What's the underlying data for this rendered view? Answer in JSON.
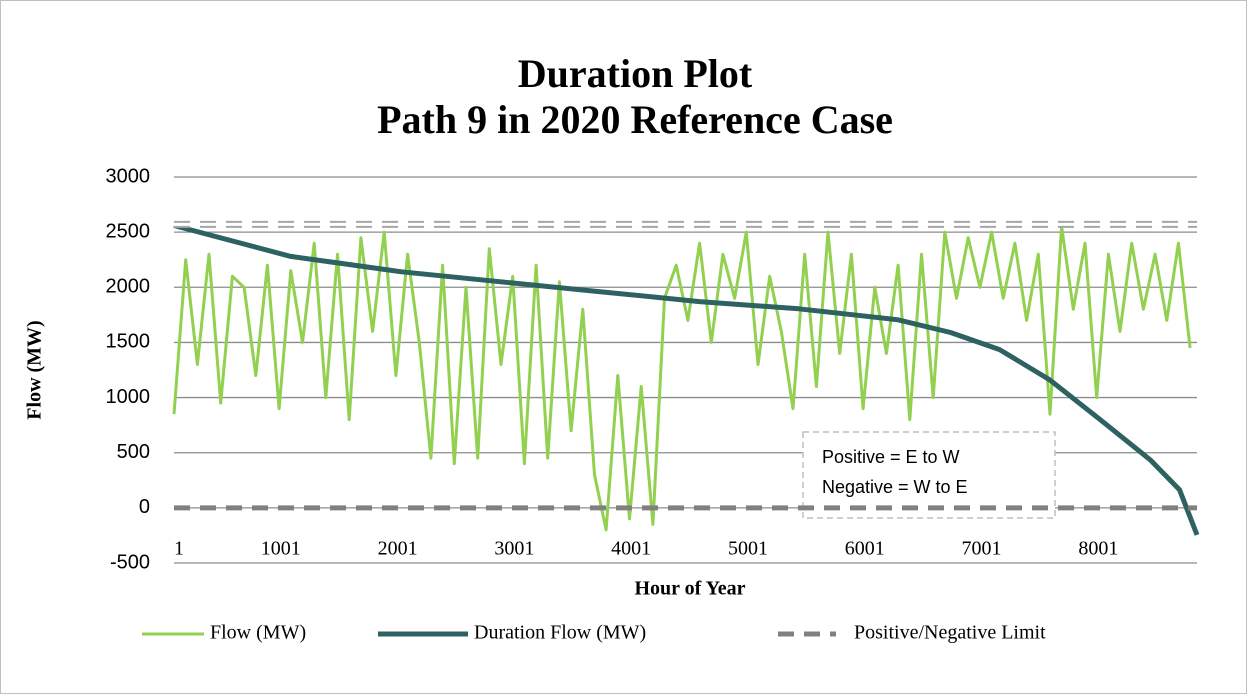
{
  "chart_data": {
    "type": "line",
    "title": "Duration Plot",
    "subtitle": "Path 9 in 2020 Reference Case",
    "x_label": "Hour of Year",
    "y_label": "Flow (MW)",
    "annotation": [
      "Positive = E to W",
      "Negative = W to E"
    ],
    "xlim": [
      1,
      8760
    ],
    "xticks": [
      1,
      1001,
      2001,
      3001,
      4001,
      5001,
      6001,
      7001,
      8001
    ],
    "ylim": [
      -500,
      3000
    ],
    "yticks": [
      -500,
      0,
      500,
      1000,
      1500,
      2000,
      2500,
      3000
    ],
    "grid": true,
    "legend": "bottom",
    "series": [
      {
        "name": "Flow (MW)",
        "color": "#92d050",
        "x": [
          1,
          101,
          201,
          301,
          401,
          501,
          601,
          701,
          801,
          901,
          1001,
          1101,
          1201,
          1301,
          1401,
          1501,
          1601,
          1701,
          1801,
          1901,
          2001,
          2101,
          2201,
          2301,
          2401,
          2501,
          2601,
          2701,
          2801,
          2901,
          3001,
          3101,
          3201,
          3301,
          3401,
          3501,
          3601,
          3701,
          3801,
          3901,
          4001,
          4101,
          4201,
          4301,
          4401,
          4501,
          4601,
          4701,
          4801,
          4901,
          5001,
          5101,
          5201,
          5301,
          5401,
          5501,
          5601,
          5701,
          5801,
          5901,
          6001,
          6101,
          6201,
          6301,
          6401,
          6501,
          6601,
          6701,
          6801,
          6901,
          7001,
          7101,
          7201,
          7301,
          7401,
          7501,
          7601,
          7701,
          7801,
          7901,
          8001,
          8101,
          8201,
          8301,
          8401,
          8501,
          8601,
          8701
        ],
        "values": [
          850,
          2250,
          1300,
          2300,
          950,
          2100,
          2000,
          1200,
          2200,
          900,
          2150,
          1500,
          2400,
          1000,
          2300,
          800,
          2450,
          1600,
          2500,
          1200,
          2300,
          1500,
          450,
          2200,
          400,
          2000,
          450,
          2350,
          1300,
          2100,
          400,
          2200,
          450,
          2050,
          700,
          1800,
          300,
          -200,
          1200,
          -100,
          1100,
          -150,
          1900,
          2200,
          1700,
          2400,
          1500,
          2300,
          1900,
          2500,
          1300,
          2100,
          1600,
          900,
          2300,
          1100,
          2500,
          1400,
          2300,
          900,
          2000,
          1400,
          2200,
          800,
          2300,
          1000,
          2500,
          1900,
          2450,
          2000,
          2500,
          1900,
          2400,
          1700,
          2300,
          850,
          2550,
          1800,
          2400,
          1000,
          2300,
          1600,
          2400,
          1800,
          2300,
          1700,
          2400,
          1450
        ]
      },
      {
        "name": "Duration Flow (MW)",
        "color": "#2e6262",
        "x": [
          1,
          1000,
          1950,
          2800,
          3650,
          4500,
          5350,
          6200,
          6650,
          7070,
          7500,
          7930,
          8360,
          8610,
          8760
        ],
        "values": [
          2560,
          2280,
          2140,
          2050,
          1960,
          1870,
          1805,
          1705,
          1590,
          1435,
          1160,
          800,
          435,
          165,
          -245
        ]
      },
      {
        "name": "Positive/Negative Limit",
        "color": "#808080",
        "values": [
          2570,
          0
        ]
      }
    ]
  }
}
